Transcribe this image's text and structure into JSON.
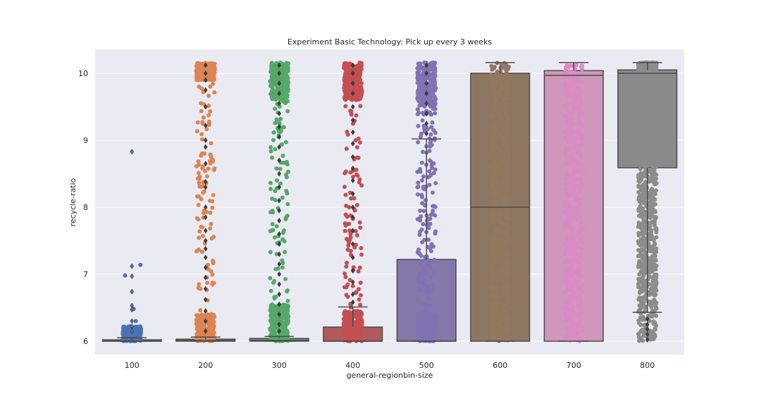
{
  "chart_data": {
    "type": "box",
    "title": "Experiment Basic Technology: Pick up every 3 weeks",
    "xlabel": "general-regionbin-size",
    "ylabel": "recycle-ratio",
    "categories": [
      "100",
      "200",
      "300",
      "400",
      "500",
      "600",
      "700",
      "800"
    ],
    "yticks": [
      6,
      7,
      8,
      9,
      10
    ],
    "ylim": [
      5.78,
      10.36
    ],
    "grid": true,
    "legend": "none",
    "colors": [
      "#4c72b0",
      "#dd8452",
      "#55a868",
      "#c44e52",
      "#8172b3",
      "#937860",
      "#da8bc3",
      "#8c8c8c"
    ],
    "box_colors": [
      "#5a6f96",
      "#b07f5a",
      "#5e9870",
      "#b05a5d",
      "#8677ab",
      "#8e7762",
      "#cf97bc",
      "#8a8a8a"
    ],
    "boxes": [
      {
        "category": "100",
        "q1": 6.0,
        "median": 6.0,
        "q3": 6.02,
        "whisker_low": 6.0,
        "whisker_high": 6.05,
        "outliers": [
          8.83,
          7.12,
          6.97,
          6.74,
          6.53,
          6.47,
          6.3,
          6.22,
          6.15
        ]
      },
      {
        "category": "200",
        "q1": 6.0,
        "median": 6.01,
        "q3": 6.03,
        "whisker_low": 6.0,
        "whisker_high": 6.06,
        "outliers": [
          10.12,
          10.0,
          9.9,
          9.75,
          9.5,
          9.22,
          9.0,
          8.9,
          8.65,
          8.38,
          8.3,
          8.0,
          7.85,
          7.65,
          7.5,
          7.38,
          7.25,
          7.1,
          6.95,
          6.78,
          6.62,
          6.45,
          6.3,
          6.15
        ]
      },
      {
        "category": "300",
        "q1": 6.0,
        "median": 6.01,
        "q3": 6.04,
        "whisker_low": 6.0,
        "whisker_high": 6.07,
        "outliers": [
          10.12,
          10.0,
          9.85,
          9.7,
          9.55,
          9.4,
          9.2,
          9.05,
          8.9,
          8.7,
          8.5,
          8.3,
          8.1,
          7.95,
          7.8,
          7.6,
          7.45,
          7.3,
          7.15,
          7.0,
          6.85,
          6.7,
          6.55,
          6.4,
          6.25,
          6.15
        ]
      },
      {
        "category": "400",
        "q1": 6.0,
        "median": 6.0,
        "q3": 6.21,
        "whisker_low": 6.0,
        "whisker_high": 6.51,
        "outliers": [
          10.12,
          10.0,
          9.85,
          9.7,
          9.5,
          9.3,
          9.12,
          8.95,
          8.75,
          8.58,
          8.4,
          8.2,
          8.0,
          7.85,
          7.65,
          7.45,
          7.25,
          7.05,
          6.88,
          6.7,
          6.58
        ]
      },
      {
        "category": "500",
        "q1": 6.0,
        "median": 6.0,
        "q3": 7.22,
        "whisker_low": 6.0,
        "whisker_high": 9.02,
        "outliers": [
          10.12,
          10.0,
          9.85,
          9.7,
          9.55,
          9.4,
          9.25,
          9.1
        ]
      },
      {
        "category": "600",
        "q1": 6.0,
        "median": 8.0,
        "q3": 10.0,
        "whisker_low": 6.0,
        "whisker_high": 10.16,
        "outliers": []
      },
      {
        "category": "700",
        "q1": 6.0,
        "median": 9.97,
        "q3": 10.04,
        "whisker_low": 6.0,
        "whisker_high": 10.16,
        "outliers": []
      },
      {
        "category": "800",
        "q1": 8.59,
        "median": 10.0,
        "q3": 10.05,
        "whisker_low": 6.43,
        "whisker_high": 10.16,
        "outliers": [
          6.33,
          6.25,
          6.18,
          6.1,
          6.02
        ]
      }
    ],
    "strip_points": [
      {
        "category": "100",
        "dense_band": [
          6.0,
          6.22
        ],
        "scatter": [
          7.14,
          6.98,
          6.48,
          6.3
        ]
      },
      {
        "category": "200",
        "dense_band": [
          6.0,
          6.4
        ],
        "top_band": [
          9.9,
          10.16
        ],
        "range": [
          6.0,
          10.16
        ]
      },
      {
        "category": "300",
        "dense_band": [
          6.0,
          6.55
        ],
        "top_band": [
          9.6,
          10.16
        ],
        "range": [
          6.0,
          10.16
        ]
      },
      {
        "category": "400",
        "dense_band": [
          6.0,
          6.45
        ],
        "top_band": [
          9.6,
          10.16
        ],
        "range": [
          6.0,
          10.16
        ]
      },
      {
        "category": "500",
        "dense_band": [
          6.0,
          6.4
        ],
        "top_band": [
          9.5,
          10.16
        ],
        "range": [
          6.0,
          10.16
        ]
      },
      {
        "category": "600",
        "dense_band": [
          6.0,
          10.16
        ],
        "range": [
          6.0,
          10.16
        ]
      },
      {
        "category": "700",
        "dense_band": [
          6.0,
          10.16
        ],
        "range": [
          6.0,
          10.16
        ]
      },
      {
        "category": "800",
        "dense_band": [
          6.0,
          8.6
        ],
        "top_band": [
          10.05,
          10.16
        ],
        "range": [
          6.0,
          10.16
        ]
      }
    ]
  }
}
